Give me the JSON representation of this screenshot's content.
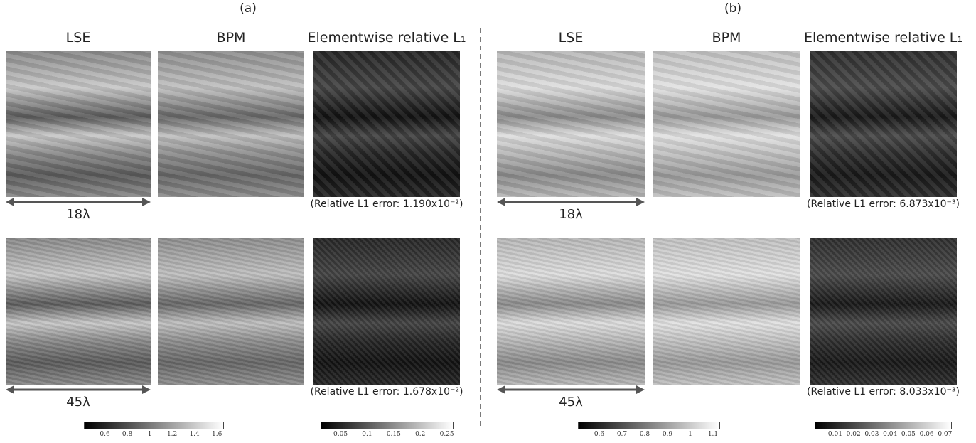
{
  "panels": [
    {
      "label": "(a)",
      "columns": [
        "LSE",
        "BPM",
        "Elementwise relative L₁"
      ],
      "rows": [
        {
          "scale": "18λ",
          "error": "(Relative L1 error: 1.190x10⁻²)"
        },
        {
          "scale": "45λ",
          "error": "(Relative L1 error: 1.678x10⁻²)"
        }
      ],
      "colorbars": [
        {
          "ticks": [
            "0.6",
            "0.8",
            "1",
            "1.2",
            "1.4",
            "1.6"
          ]
        },
        {
          "ticks": [
            "0.05",
            "0.1",
            "0.15",
            "0.2",
            "0.25"
          ]
        }
      ]
    },
    {
      "label": "(b)",
      "columns": [
        "LSE",
        "BPM",
        "Elementwise relative L₁"
      ],
      "rows": [
        {
          "scale": "18λ",
          "error": "(Relative L1 error: 6.873x10⁻³)"
        },
        {
          "scale": "45λ",
          "error": "(Relative L1 error: 8.033x10⁻³)"
        }
      ],
      "colorbars": [
        {
          "ticks": [
            "0.6",
            "0.7",
            "0.8",
            "0.9",
            "1",
            "1.1"
          ]
        },
        {
          "ticks": [
            "0.01",
            "0.02",
            "0.03",
            "0.04",
            "0.05",
            "0.06",
            "0.07"
          ]
        }
      ]
    }
  ]
}
